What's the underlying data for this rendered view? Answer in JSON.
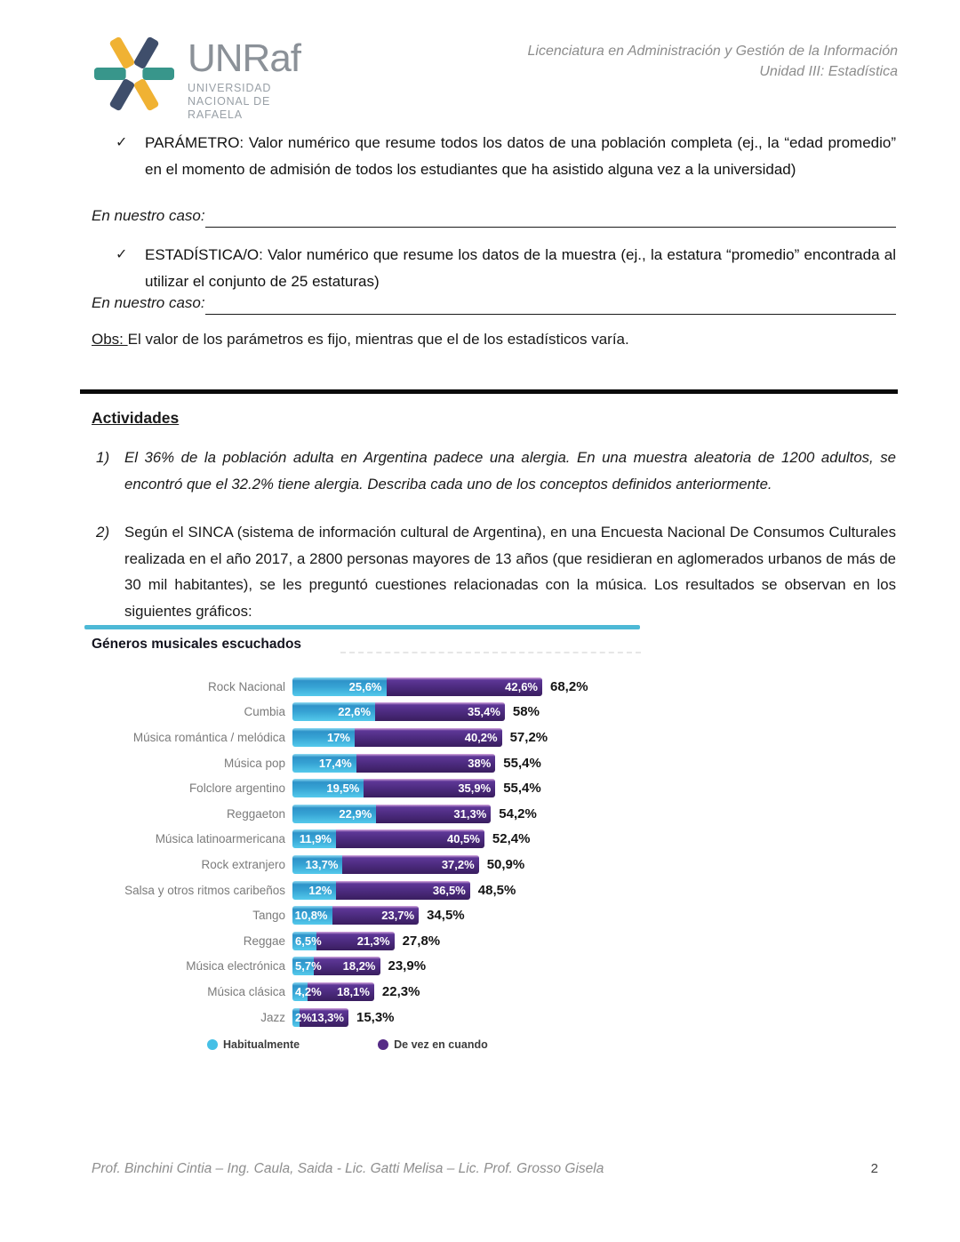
{
  "header": {
    "logo": {
      "brand": "UNRaf",
      "subtitle_lines": [
        "UNIVERSIDAD",
        "NACIONAL DE",
        "RAFAELA"
      ],
      "colors": {
        "teal": "#38968b",
        "yellow": "#f0b233",
        "navy": "#3f4e6b"
      }
    },
    "course": "Licenciatura en Administración y Gestión de la Información",
    "unit": "Unidad III: Estadística"
  },
  "definitions": [
    {
      "check": "✓",
      "term": "PARÁMETRO:",
      "text": "Valor numérico que resume todos los datos de una población completa (ej., la “edad promedio” en el momento de admisión de todos los estudiantes que ha asistido alguna vez a la universidad)",
      "case_label": "En nuestro caso:"
    },
    {
      "check": "✓",
      "term": "ESTADÍSTICA/O:",
      "text": "Valor numérico que resume los datos de la muestra (ej., la estatura “promedio” encontrada al utilizar el conjunto de 25 estaturas)",
      "case_label": "En nuestro caso:"
    }
  ],
  "obs": {
    "label": "Obs: ",
    "text": "El valor de los parámetros es fijo, mientras que el de los estadísticos varía."
  },
  "activities": {
    "heading": "Actividades",
    "items": [
      {
        "number": "1)",
        "text": "El 36% de la población adulta en Argentina padece una alergia. En una muestra aleatoria de 1200 adultos, se encontró que el 32.2% tiene alergia. Describa cada uno de los conceptos definidos anteriormente."
      },
      {
        "number": "2)",
        "text": "Según el SINCA (sistema de información cultural de Argentina), en una Encuesta Nacional De Consumos Culturales realizada en el año 2017, a 2800 personas mayores de 13 años (que residieran en aglomerados urbanos de más de 30 mil habitantes), se les preguntó cuestiones relacionadas con la música. Los resultados se observan en los siguientes gráficos:"
      }
    ]
  },
  "chart_data": {
    "type": "bar",
    "orientation": "horizontal",
    "stacked": true,
    "title": "Géneros musicales escuchados",
    "categories": [
      "Rock Nacional",
      "Cumbia",
      "Música romántica / melódica",
      "Música pop",
      "Folclore argentino",
      "Reggaeton",
      "Música latinoarmericana",
      "Rock extranjero",
      "Salsa y otros ritmos caribeños",
      "Tango",
      "Reggae",
      "Música electrónica",
      "Música clásica",
      "Jazz"
    ],
    "series": [
      {
        "name": "Habitualmente",
        "color": "#45c0e6",
        "values": [
          25.6,
          22.6,
          17,
          17.4,
          19.5,
          22.9,
          11.9,
          13.7,
          12,
          10.8,
          6.5,
          5.7,
          4.2,
          2
        ]
      },
      {
        "name": "De vez en cuando",
        "color": "#552b86",
        "values": [
          42.6,
          35.4,
          40.2,
          38,
          35.9,
          31.3,
          40.5,
          37.2,
          36.5,
          23.7,
          21.3,
          18.2,
          18.1,
          13.3
        ]
      }
    ],
    "segment_labels": [
      [
        "25,6%",
        "42,6%"
      ],
      [
        "22,6%",
        "35,4%"
      ],
      [
        "17%",
        "40,2%"
      ],
      [
        "17,4%",
        "38%"
      ],
      [
        "19,5%",
        "35,9%"
      ],
      [
        "22,9%",
        "31,3%"
      ],
      [
        "11,9%",
        "40,5%"
      ],
      [
        "13,7%",
        "37,2%"
      ],
      [
        "12%",
        "36,5%"
      ],
      [
        "10,8%",
        "23,7%"
      ],
      [
        "6,5%",
        "21,3%"
      ],
      [
        "5,7%",
        "18,2%"
      ],
      [
        "4,2%",
        "18,1%"
      ],
      [
        "2%",
        "13,3%"
      ]
    ],
    "totals": [
      "68,2%",
      "58%",
      "57,2%",
      "55,4%",
      "55,4%",
      "54,2%",
      "52,4%",
      "50,9%",
      "48,5%",
      "34,5%",
      "27,8%",
      "23,9%",
      "22,3%",
      "15,3%"
    ],
    "xlim": [
      0,
      70
    ],
    "grid": false,
    "legend_position": "bottom",
    "legend": [
      {
        "label": "Habitualmente",
        "color": "#45c0e6"
      },
      {
        "label": "De vez en cuando",
        "color": "#552b86"
      }
    ],
    "accent_line_color": "#4db9d6"
  },
  "footer": {
    "credits": "Prof. Binchini Cintia – Ing. Caula, Saida - Lic. Gatti Melisa – Lic. Prof. Grosso Gisela",
    "page": "2"
  }
}
